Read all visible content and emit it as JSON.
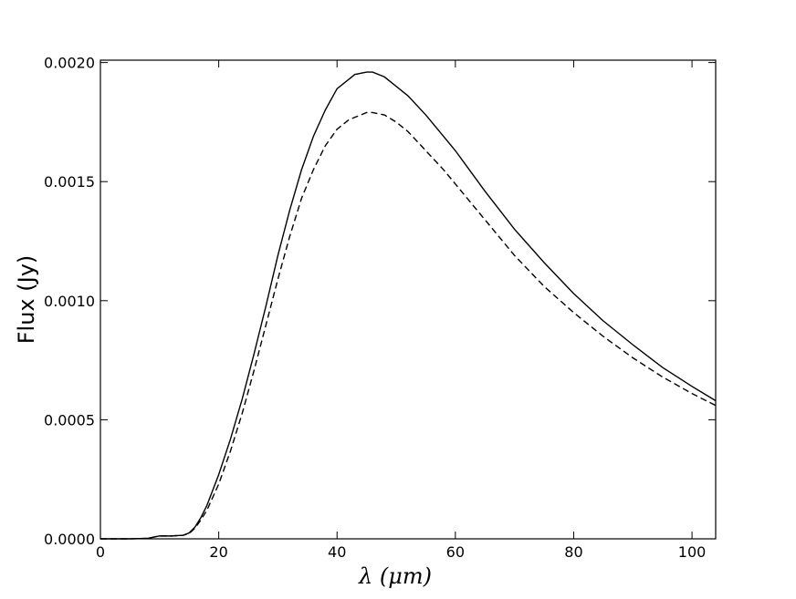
{
  "chart_data": {
    "type": "line",
    "title": "",
    "xlabel": "λ (μm)",
    "ylabel": "Flux (Jy)",
    "xlim": [
      0,
      104
    ],
    "ylim": [
      0,
      0.00201
    ],
    "x_ticks": [
      0,
      20,
      40,
      60,
      80,
      100
    ],
    "x_tick_labels": [
      "0",
      "20",
      "40",
      "60",
      "80",
      "100"
    ],
    "y_ticks": [
      0,
      0.0005,
      0.001,
      0.0015,
      0.002
    ],
    "y_tick_labels": [
      "0.0000",
      "0.0005",
      "0.0010",
      "0.0015",
      "0.0020"
    ],
    "grid": false,
    "legend": "none",
    "series": [
      {
        "style": "solid",
        "color": "#000000",
        "x": [
          0,
          5,
          8,
          10,
          12,
          14,
          15,
          16,
          17,
          18,
          20,
          22,
          24,
          26,
          28,
          30,
          32,
          34,
          36,
          38,
          40,
          42,
          43,
          45,
          46,
          48,
          50,
          52,
          55,
          58,
          60,
          65,
          70,
          75,
          80,
          85,
          90,
          95,
          100,
          104
        ],
        "y": [
          0,
          0,
          2e-06,
          1.2e-05,
          1.2e-05,
          1.5e-05,
          2.5e-05,
          5e-05,
          9e-05,
          0.00014,
          0.00027,
          0.00042,
          0.00059,
          0.00078,
          0.00098,
          0.00119,
          0.00138,
          0.00155,
          0.00169,
          0.0018,
          0.00189,
          0.00193,
          0.00195,
          0.00196,
          0.00196,
          0.00194,
          0.0019,
          0.00186,
          0.00178,
          0.00169,
          0.00163,
          0.00146,
          0.0013,
          0.00116,
          0.00103,
          0.000915,
          0.000815,
          0.00072,
          0.00064,
          0.00058
        ]
      },
      {
        "style": "dashed",
        "color": "#000000",
        "x": [
          0,
          5,
          8,
          10,
          12,
          14,
          15,
          16,
          17,
          18,
          20,
          22,
          24,
          26,
          28,
          30,
          32,
          34,
          36,
          38,
          40,
          42,
          44,
          45,
          46,
          48,
          50,
          52,
          55,
          58,
          60,
          65,
          70,
          75,
          80,
          85,
          90,
          95,
          100,
          104
        ],
        "y": [
          0,
          0,
          2e-06,
          1.2e-05,
          1.2e-05,
          1.5e-05,
          2.2e-05,
          4.5e-05,
          8e-05,
          0.00012,
          0.00023,
          0.00037,
          0.00053,
          0.00071,
          0.0009,
          0.00109,
          0.00127,
          0.00143,
          0.00155,
          0.00165,
          0.00172,
          0.00176,
          0.00178,
          0.00179,
          0.00179,
          0.00178,
          0.00175,
          0.00171,
          0.00163,
          0.00155,
          0.00149,
          0.00134,
          0.00119,
          0.00106,
          0.00095,
          0.00085,
          0.00076,
          0.00068,
          0.00061,
          0.00056
        ]
      }
    ]
  }
}
